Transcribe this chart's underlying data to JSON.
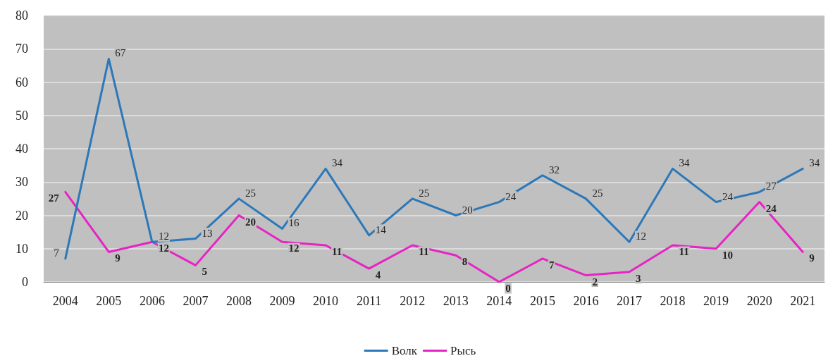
{
  "chart_data": {
    "type": "line",
    "categories": [
      "2004",
      "2005",
      "2006",
      "2007",
      "2008",
      "2009",
      "2010",
      "2011",
      "2012",
      "2013",
      "2014",
      "2015",
      "2016",
      "2017",
      "2018",
      "2019",
      "2020",
      "2021"
    ],
    "series": [
      {
        "name": "Волк",
        "color": "#2c78b8",
        "values": [
          7,
          67,
          12,
          13,
          25,
          16,
          34,
          14,
          25,
          20,
          24,
          32,
          25,
          12,
          34,
          24,
          27,
          34
        ]
      },
      {
        "name": "Рысь",
        "color": "#e623c4",
        "values": [
          27,
          9,
          12,
          5,
          20,
          12,
          11,
          4,
          11,
          8,
          0,
          7,
          2,
          3,
          11,
          10,
          24,
          9
        ]
      }
    ],
    "ylim": [
      0,
      80
    ],
    "yticks": [
      0,
      10,
      20,
      30,
      40,
      50,
      60,
      70,
      80
    ],
    "grid": "y",
    "legend": "bottom",
    "marker": "none",
    "line_style": "solid",
    "data_labels": true
  }
}
